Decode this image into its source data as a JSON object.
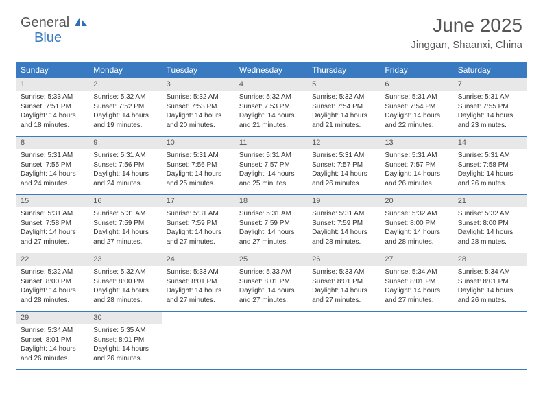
{
  "logo": {
    "part1": "General",
    "part2": "Blue"
  },
  "header": {
    "month_title": "June 2025",
    "location": "Jinggan, Shaanxi, China"
  },
  "colors": {
    "header_bar": "#3a7ac0",
    "daynum_bg": "#e8e8e8",
    "text": "#333333",
    "title_text": "#555555",
    "logo_blue": "#2f6fb5"
  },
  "day_names": [
    "Sunday",
    "Monday",
    "Tuesday",
    "Wednesday",
    "Thursday",
    "Friday",
    "Saturday"
  ],
  "weeks": [
    [
      {
        "n": "1",
        "sr": "5:33 AM",
        "ss": "7:51 PM",
        "dl": "14 hours and 18 minutes."
      },
      {
        "n": "2",
        "sr": "5:32 AM",
        "ss": "7:52 PM",
        "dl": "14 hours and 19 minutes."
      },
      {
        "n": "3",
        "sr": "5:32 AM",
        "ss": "7:53 PM",
        "dl": "14 hours and 20 minutes."
      },
      {
        "n": "4",
        "sr": "5:32 AM",
        "ss": "7:53 PM",
        "dl": "14 hours and 21 minutes."
      },
      {
        "n": "5",
        "sr": "5:32 AM",
        "ss": "7:54 PM",
        "dl": "14 hours and 21 minutes."
      },
      {
        "n": "6",
        "sr": "5:31 AM",
        "ss": "7:54 PM",
        "dl": "14 hours and 22 minutes."
      },
      {
        "n": "7",
        "sr": "5:31 AM",
        "ss": "7:55 PM",
        "dl": "14 hours and 23 minutes."
      }
    ],
    [
      {
        "n": "8",
        "sr": "5:31 AM",
        "ss": "7:55 PM",
        "dl": "14 hours and 24 minutes."
      },
      {
        "n": "9",
        "sr": "5:31 AM",
        "ss": "7:56 PM",
        "dl": "14 hours and 24 minutes."
      },
      {
        "n": "10",
        "sr": "5:31 AM",
        "ss": "7:56 PM",
        "dl": "14 hours and 25 minutes."
      },
      {
        "n": "11",
        "sr": "5:31 AM",
        "ss": "7:57 PM",
        "dl": "14 hours and 25 minutes."
      },
      {
        "n": "12",
        "sr": "5:31 AM",
        "ss": "7:57 PM",
        "dl": "14 hours and 26 minutes."
      },
      {
        "n": "13",
        "sr": "5:31 AM",
        "ss": "7:57 PM",
        "dl": "14 hours and 26 minutes."
      },
      {
        "n": "14",
        "sr": "5:31 AM",
        "ss": "7:58 PM",
        "dl": "14 hours and 26 minutes."
      }
    ],
    [
      {
        "n": "15",
        "sr": "5:31 AM",
        "ss": "7:58 PM",
        "dl": "14 hours and 27 minutes."
      },
      {
        "n": "16",
        "sr": "5:31 AM",
        "ss": "7:59 PM",
        "dl": "14 hours and 27 minutes."
      },
      {
        "n": "17",
        "sr": "5:31 AM",
        "ss": "7:59 PM",
        "dl": "14 hours and 27 minutes."
      },
      {
        "n": "18",
        "sr": "5:31 AM",
        "ss": "7:59 PM",
        "dl": "14 hours and 27 minutes."
      },
      {
        "n": "19",
        "sr": "5:31 AM",
        "ss": "7:59 PM",
        "dl": "14 hours and 28 minutes."
      },
      {
        "n": "20",
        "sr": "5:32 AM",
        "ss": "8:00 PM",
        "dl": "14 hours and 28 minutes."
      },
      {
        "n": "21",
        "sr": "5:32 AM",
        "ss": "8:00 PM",
        "dl": "14 hours and 28 minutes."
      }
    ],
    [
      {
        "n": "22",
        "sr": "5:32 AM",
        "ss": "8:00 PM",
        "dl": "14 hours and 28 minutes."
      },
      {
        "n": "23",
        "sr": "5:32 AM",
        "ss": "8:00 PM",
        "dl": "14 hours and 28 minutes."
      },
      {
        "n": "24",
        "sr": "5:33 AM",
        "ss": "8:01 PM",
        "dl": "14 hours and 27 minutes."
      },
      {
        "n": "25",
        "sr": "5:33 AM",
        "ss": "8:01 PM",
        "dl": "14 hours and 27 minutes."
      },
      {
        "n": "26",
        "sr": "5:33 AM",
        "ss": "8:01 PM",
        "dl": "14 hours and 27 minutes."
      },
      {
        "n": "27",
        "sr": "5:34 AM",
        "ss": "8:01 PM",
        "dl": "14 hours and 27 minutes."
      },
      {
        "n": "28",
        "sr": "5:34 AM",
        "ss": "8:01 PM",
        "dl": "14 hours and 26 minutes."
      }
    ],
    [
      {
        "n": "29",
        "sr": "5:34 AM",
        "ss": "8:01 PM",
        "dl": "14 hours and 26 minutes."
      },
      {
        "n": "30",
        "sr": "5:35 AM",
        "ss": "8:01 PM",
        "dl": "14 hours and 26 minutes."
      },
      null,
      null,
      null,
      null,
      null
    ]
  ],
  "labels": {
    "sunrise": "Sunrise: ",
    "sunset": "Sunset: ",
    "daylight": "Daylight: "
  }
}
